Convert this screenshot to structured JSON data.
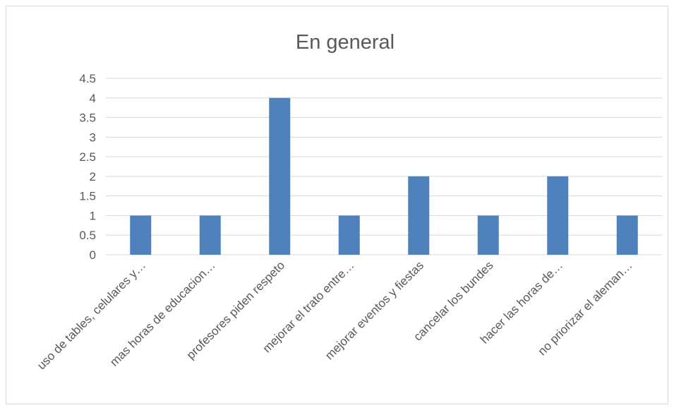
{
  "chart_data": {
    "type": "bar",
    "title": "En general",
    "xlabel": "",
    "ylabel": "",
    "ylim": [
      0,
      4.5
    ],
    "y_ticks": [
      "0",
      "0.5",
      "1",
      "1.5",
      "2",
      "2.5",
      "3",
      "3.5",
      "4",
      "4.5"
    ],
    "grid": true,
    "legend": "none",
    "categories": [
      "uso de tables, celulares y…",
      "mas horas de educacion…",
      "profesores piden respeto",
      "mejorar el trato entre…",
      "mejorar eventos y fiestas",
      "cancelar los bundes",
      "hacer las horas de…",
      "no priorizar el aleman…"
    ],
    "values": [
      1,
      1,
      4,
      1,
      2,
      1,
      2,
      1
    ],
    "colors": {
      "bar": "#4f81bd",
      "grid": "#d9d9d9",
      "text": "#595959"
    }
  }
}
